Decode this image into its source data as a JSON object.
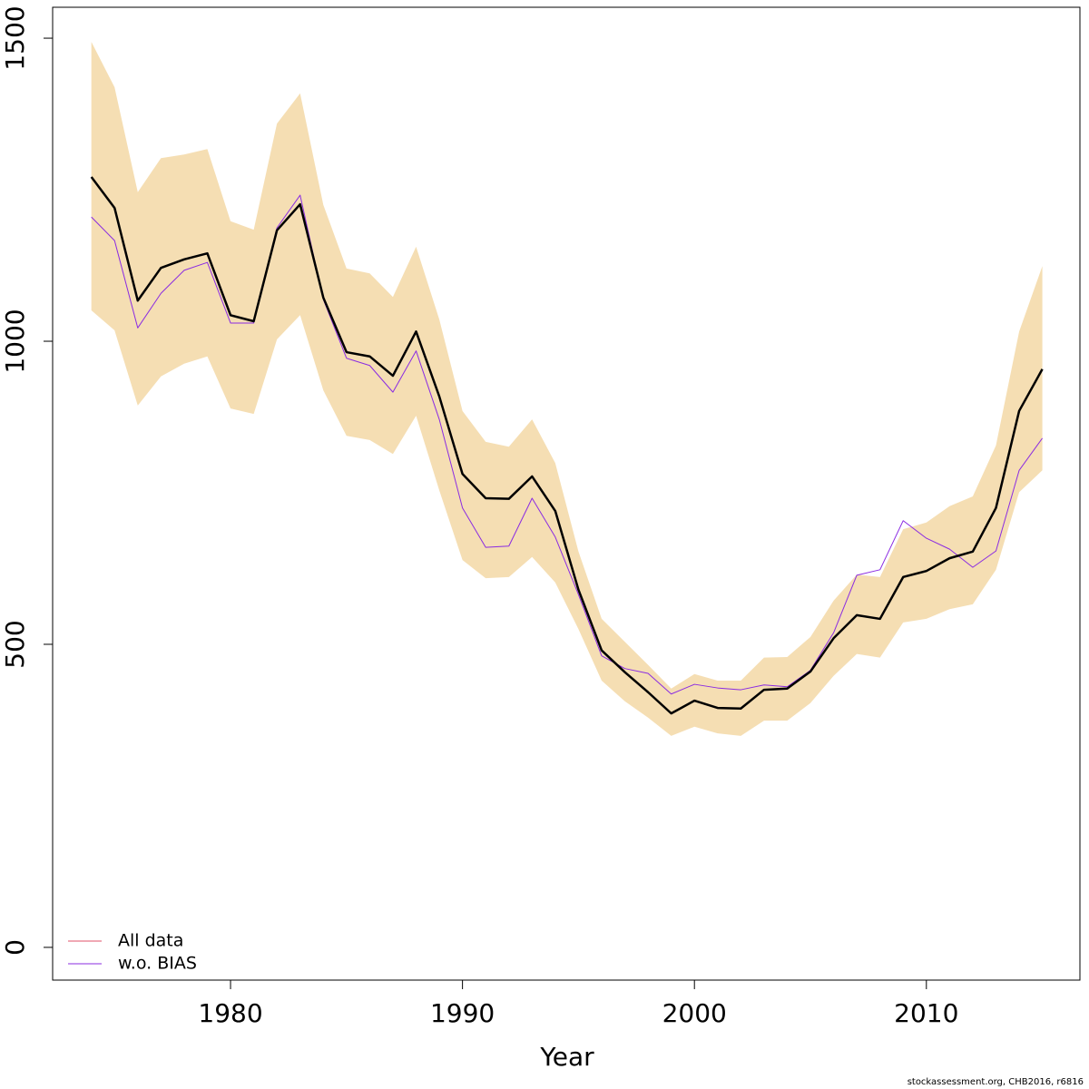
{
  "chart_data": {
    "type": "line",
    "xlabel": "Year",
    "footer": "stockassessment.org, CHB2016, r6816",
    "x": [
      1974,
      1975,
      1976,
      1977,
      1978,
      1979,
      1980,
      1981,
      1982,
      1983,
      1984,
      1985,
      1986,
      1987,
      1988,
      1989,
      1990,
      1991,
      1992,
      1993,
      1994,
      1995,
      1996,
      1997,
      1998,
      1999,
      2000,
      2001,
      2002,
      2003,
      2004,
      2005,
      2006,
      2007,
      2008,
      2009,
      2010,
      2011,
      2012,
      2013,
      2014,
      2015
    ],
    "band": {
      "color": "#f5deb3",
      "upper": [
        1494,
        1419,
        1246,
        1302,
        1308,
        1317,
        1198,
        1184,
        1359,
        1409,
        1225,
        1120,
        1112,
        1073,
        1156,
        1036,
        885,
        834,
        826,
        871,
        799,
        653,
        542,
        504,
        466,
        427,
        451,
        440,
        440,
        478,
        479,
        512,
        572,
        615,
        611,
        690,
        701,
        728,
        744,
        828,
        1016,
        1124
      ],
      "lower": [
        1051,
        1018,
        894,
        942,
        963,
        975,
        889,
        880,
        1003,
        1043,
        919,
        844,
        837,
        814,
        877,
        754,
        639,
        609,
        611,
        644,
        602,
        525,
        440,
        406,
        379,
        349,
        364,
        353,
        349,
        374,
        374,
        403,
        448,
        484,
        478,
        536,
        542,
        558,
        566,
        623,
        751,
        787
      ]
    },
    "series": [
      {
        "name": "All data",
        "color": "#000000",
        "legend_color": "#e0506a",
        "line_width": 2.5,
        "values": [
          1271,
          1220,
          1067,
          1121,
          1135,
          1145,
          1043,
          1033,
          1183,
          1226,
          1072,
          982,
          975,
          943,
          1016,
          909,
          781,
          741,
          740,
          777,
          720,
          590,
          490,
          454,
          421,
          386,
          407,
          395,
          394,
          425,
          427,
          455,
          510,
          548,
          542,
          611,
          621,
          642,
          653,
          725,
          885,
          954
        ]
      },
      {
        "name": "w.o. BIAS",
        "color": "#8a2be2",
        "legend_color": "#8a2be2",
        "line_width": 1,
        "values": [
          1205,
          1166,
          1022,
          1079,
          1117,
          1130,
          1030,
          1030,
          1187,
          1241,
          1069,
          972,
          960,
          916,
          984,
          871,
          725,
          660,
          662,
          741,
          677,
          582,
          481,
          460,
          452,
          418,
          434,
          428,
          425,
          433,
          430,
          457,
          519,
          614,
          623,
          704,
          675,
          657,
          627,
          654,
          787,
          840
        ]
      }
    ],
    "xlim": [
      1972.33,
      2016.62
    ],
    "ylim": [
      -54,
      1551
    ],
    "xticks": [
      1980,
      1990,
      2000,
      2010
    ],
    "yticks": [
      0,
      500,
      1000,
      1500
    ],
    "legend": "bottom-left"
  }
}
